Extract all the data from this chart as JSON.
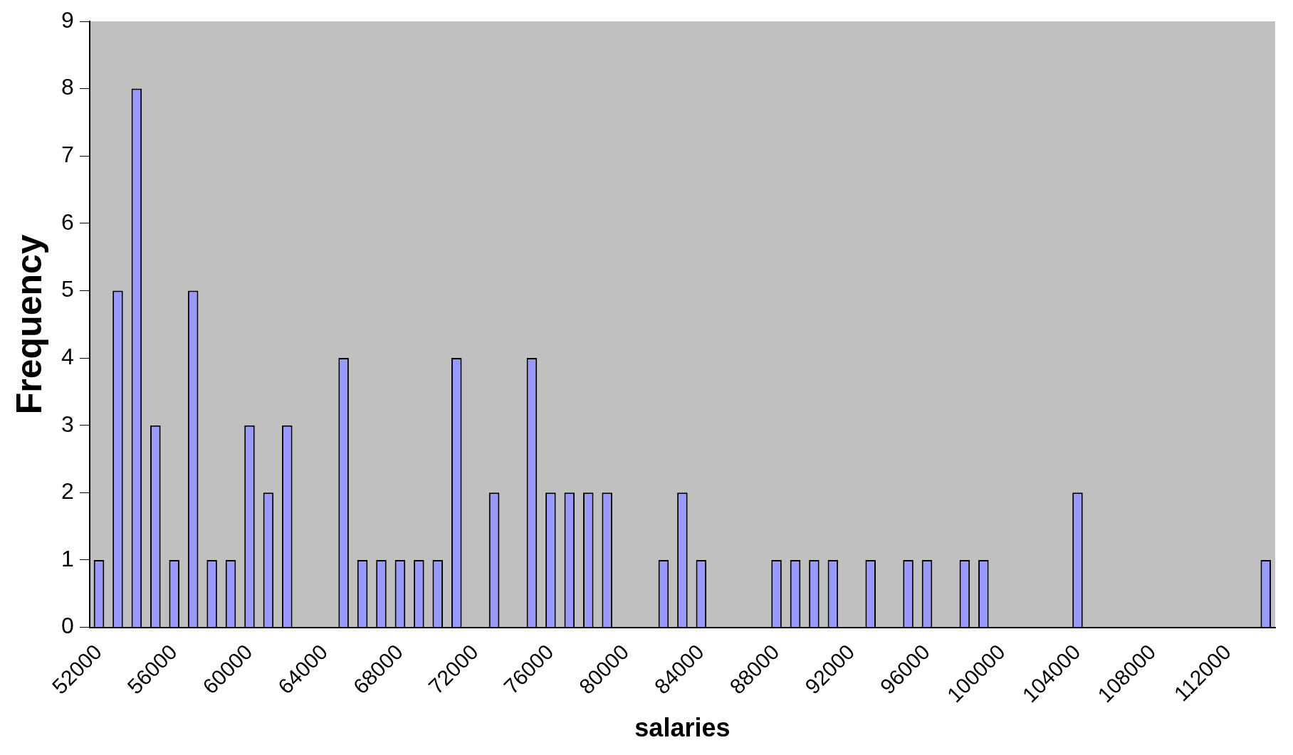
{
  "chart_data": {
    "type": "bar",
    "xlabel": "salaries",
    "ylabel": "Frequency",
    "categories": [
      "52000",
      null,
      null,
      null,
      "56000",
      null,
      null,
      null,
      "60000",
      null,
      null,
      null,
      "64000",
      null,
      null,
      null,
      "68000",
      null,
      null,
      null,
      "72000",
      null,
      null,
      null,
      "76000",
      null,
      null,
      null,
      "80000",
      null,
      null,
      null,
      "84000",
      null,
      null,
      null,
      "88000",
      null,
      null,
      null,
      "92000",
      null,
      null,
      null,
      "96000",
      null,
      null,
      null,
      "100000",
      null,
      null,
      null,
      "104000",
      null,
      null,
      null,
      "108000",
      null,
      null,
      null,
      "112000",
      null,
      null
    ],
    "values": [
      1,
      5,
      8,
      3,
      1,
      5,
      1,
      1,
      3,
      2,
      3,
      0,
      0,
      4,
      1,
      1,
      1,
      1,
      1,
      4,
      0,
      2,
      0,
      4,
      2,
      2,
      2,
      2,
      0,
      0,
      1,
      2,
      1,
      0,
      0,
      0,
      1,
      1,
      1,
      1,
      0,
      1,
      0,
      1,
      1,
      0,
      1,
      1,
      0,
      0,
      0,
      0,
      2,
      0,
      0,
      0,
      0,
      0,
      0,
      0,
      0,
      0,
      1
    ],
    "color": "#9999ff",
    "ylim": [
      0,
      9
    ],
    "yticks": [
      0,
      1,
      2,
      3,
      4,
      5,
      6,
      7,
      8,
      9
    ],
    "grid": false,
    "legend": false
  }
}
